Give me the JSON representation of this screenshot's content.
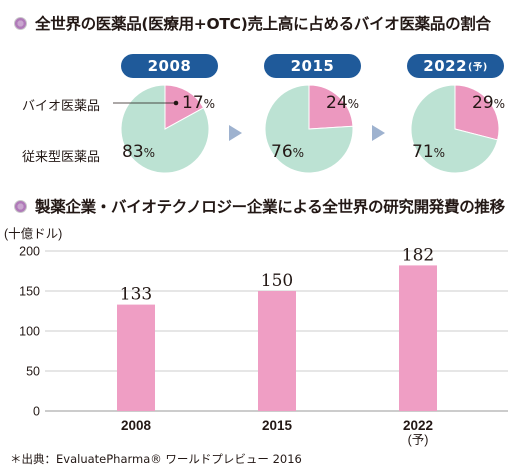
{
  "section1_title": "全世界の医薬品(医療用+OTC)売上高に占めるバイオ医薬品の割合",
  "section2_title": "製薬企業・バイオテクノロジー企業による全世界の研究開発費の推移",
  "pie_years": [
    {
      "year": "2008",
      "suffix": ""
    },
    {
      "year": "2015",
      "suffix": ""
    },
    {
      "year": "2022",
      "suffix": "(予)"
    }
  ],
  "pie_legend": {
    "bio": "バイオ医薬品",
    "conventional": "従来型医薬品"
  },
  "percent_unit": "%",
  "pie_values": [
    {
      "bio": "17",
      "conventional": "83"
    },
    {
      "bio": "24",
      "conventional": "76"
    },
    {
      "bio": "29",
      "conventional": "71"
    }
  ],
  "colors": {
    "bio": "#ec98bf",
    "conventional": "#bce2d3",
    "bar": "#ef9ec4",
    "pill": "#1f5a9a"
  },
  "chart_data": [
    {
      "type": "pie",
      "title": "2008",
      "categories": [
        "バイオ医薬品",
        "従来型医薬品"
      ],
      "values": [
        17,
        83
      ]
    },
    {
      "type": "pie",
      "title": "2015",
      "categories": [
        "バイオ医薬品",
        "従来型医薬品"
      ],
      "values": [
        24,
        76
      ]
    },
    {
      "type": "pie",
      "title": "2022(予)",
      "categories": [
        "バイオ医薬品",
        "従来型医薬品"
      ],
      "values": [
        29,
        71
      ]
    },
    {
      "type": "bar",
      "categories": [
        "2008",
        "2015",
        "2022"
      ],
      "category_notes": [
        "",
        "",
        "(予)"
      ],
      "values": [
        133,
        150,
        182
      ],
      "ylabel": "(十億ドル)",
      "ylim": [
        0,
        200
      ],
      "yticks": [
        0,
        50,
        100,
        150,
        200
      ],
      "grid": true
    }
  ],
  "source": "＊出典：EvaluatePharma® ワールドプレビュー 2016"
}
